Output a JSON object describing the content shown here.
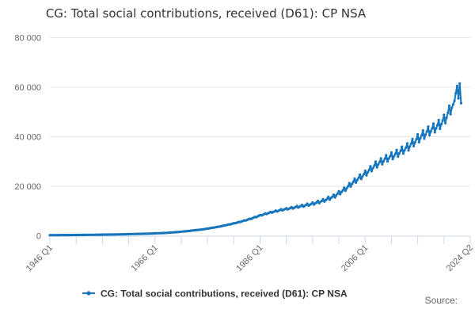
{
  "page": {
    "title": "CG: Total social contributions, received (D61): CP NSA"
  },
  "source": {
    "label": "Source:"
  },
  "legend": {
    "position": "bottom",
    "items": [
      {
        "label": "CG: Total social contributions, received (D61): CP NSA",
        "color": "#1575bd",
        "marker": "line-with-dot"
      }
    ]
  },
  "colors": {
    "line": "#1575bd",
    "grid": "#e6e6e6",
    "axis": "#ccd6eb",
    "tick_text": "#666666",
    "title_text": "#333333",
    "background": "#ffffff"
  },
  "chart_data": {
    "type": "line",
    "title": "CG: Total social contributions, received (D61): CP NSA",
    "xlabel": "",
    "ylabel": "",
    "frequency": "quarterly",
    "x_start": "1946 Q1",
    "x_end": "2024 Q2",
    "ylim": [
      0,
      80000
    ],
    "grid": "horizontal",
    "legend_position": "bottom",
    "y_ticks": {
      "values": [
        0,
        20000,
        40000,
        60000,
        80000
      ],
      "labels": [
        "0",
        "20 000",
        "40 000",
        "60 000",
        "80 000"
      ]
    },
    "x_ticks": {
      "first_year": 1946,
      "interval_years": 5,
      "axis_end_year": 2026,
      "labeled": {
        "1946": "1946 Q1",
        "1966": "1966 Q1",
        "1986": "1986 Q1",
        "2006": "2006 Q1"
      },
      "end_label": "2024 Q2",
      "label_rotation_deg": -45
    },
    "series": [
      {
        "name": "CG: Total social contributions, received (D61): CP NSA",
        "color": "#1575bd",
        "marker": "circle",
        "anchors_year_value": [
          [
            1946,
            250
          ],
          [
            1948,
            270
          ],
          [
            1950,
            300
          ],
          [
            1952,
            340
          ],
          [
            1955,
            420
          ],
          [
            1958,
            520
          ],
          [
            1960,
            600
          ],
          [
            1962,
            720
          ],
          [
            1965,
            880
          ],
          [
            1968,
            1150
          ],
          [
            1970,
            1450
          ],
          [
            1972,
            1850
          ],
          [
            1975,
            2550
          ],
          [
            1978,
            3600
          ],
          [
            1980,
            4500
          ],
          [
            1982,
            5500
          ],
          [
            1984,
            6700
          ],
          [
            1986,
            8200
          ],
          [
            1988,
            9400
          ],
          [
            1990,
            10400
          ],
          [
            1992,
            11200
          ],
          [
            1994,
            12000
          ],
          [
            1996,
            12900
          ],
          [
            1998,
            14100
          ],
          [
            2000,
            15800
          ],
          [
            2002,
            18500
          ],
          [
            2004,
            22000
          ],
          [
            2006,
            25000
          ],
          [
            2008,
            28500
          ],
          [
            2010,
            31000
          ],
          [
            2012,
            33000
          ],
          [
            2014,
            35500
          ],
          [
            2016,
            39000
          ],
          [
            2018,
            42000
          ],
          [
            2019,
            43200
          ],
          [
            2020,
            44500
          ],
          [
            2021,
            46500
          ],
          [
            2022,
            50000
          ],
          [
            2023,
            54500
          ],
          [
            2024,
            61000
          ]
        ],
        "seasonal_pattern_by_quarter": [
          0.05,
          -0.04,
          -0.01,
          0.01
        ],
        "seasonal_ramp": [
          [
            1975,
            0.15
          ],
          [
            1990,
            0.6
          ],
          [
            2000,
            1.0
          ]
        ],
        "quarter_overrides": {
          "2022.75": 53000,
          "2023": 54500,
          "2023.25": 57500,
          "2023.5": 60500,
          "2023.75": 55500,
          "2024": 61500,
          "2024.25": 53500
        }
      }
    ]
  }
}
